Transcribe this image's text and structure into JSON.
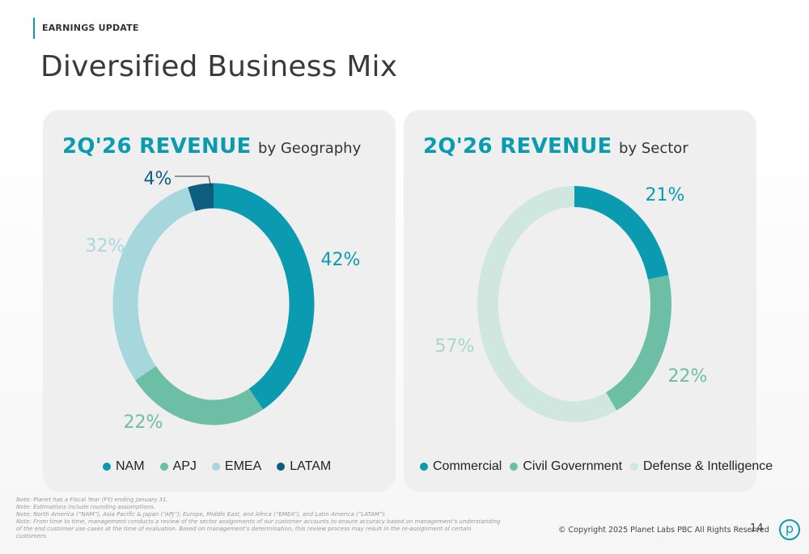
{
  "header": {
    "eyebrow": "EARNINGS UPDATE",
    "title": "Diversified Business Mix"
  },
  "chart_data": [
    {
      "type": "pie",
      "title": "2Q'26 REVENUE",
      "subtitle": "by Geography",
      "categories": [
        "NAM",
        "APJ",
        "EMEA",
        "LATAM"
      ],
      "values": [
        42,
        22,
        32,
        4
      ],
      "labels": [
        "42%",
        "22%",
        "32%",
        "4%"
      ],
      "colors": [
        "#0a9bb0",
        "#6cbea5",
        "#a5d7dc",
        "#0e5e80"
      ],
      "label_colors": [
        "#0a9bb0",
        "#6cbea5",
        "#a5d7dc",
        "#0e5e80"
      ],
      "legend_position": "bottom",
      "donut": true
    },
    {
      "type": "pie",
      "title": "2Q'26 REVENUE",
      "subtitle": "by Sector",
      "categories": [
        "Commercial",
        "Civil Government",
        "Defense & Intelligence"
      ],
      "values": [
        21,
        22,
        57
      ],
      "labels": [
        "21%",
        "22%",
        "57%"
      ],
      "colors": [
        "#0a9bb0",
        "#6cbea5",
        "#cfe7df"
      ],
      "label_colors": [
        "#0a9bb0",
        "#6cbea5",
        "#a5d7cc"
      ],
      "legend_position": "bottom",
      "donut": true
    }
  ],
  "notes": [
    "Note: Planet has a Fiscal Year (FY) ending January 31.",
    "Note: Estimations include rounding assumptions.",
    "Note: North America (“NAM”),  Asia Pacific & Japan (“APJ”); Europe, Middle East, and Africa (“EMEA”), and Latin America (“LATAM”).",
    "Note:  From time to time, management conducts a review of the sector assignments of our customer accounts to ensure accuracy based on management’s understanding of the end customer use cases at the time of evaluation. Based on management’s determination, this review process may result in the re-assignment of certain customers."
  ],
  "footer": {
    "copyright": "© Copyright 2025 Planet Labs PBC  All Rights Reserved",
    "page_number": "14",
    "logo_letter": "p"
  }
}
